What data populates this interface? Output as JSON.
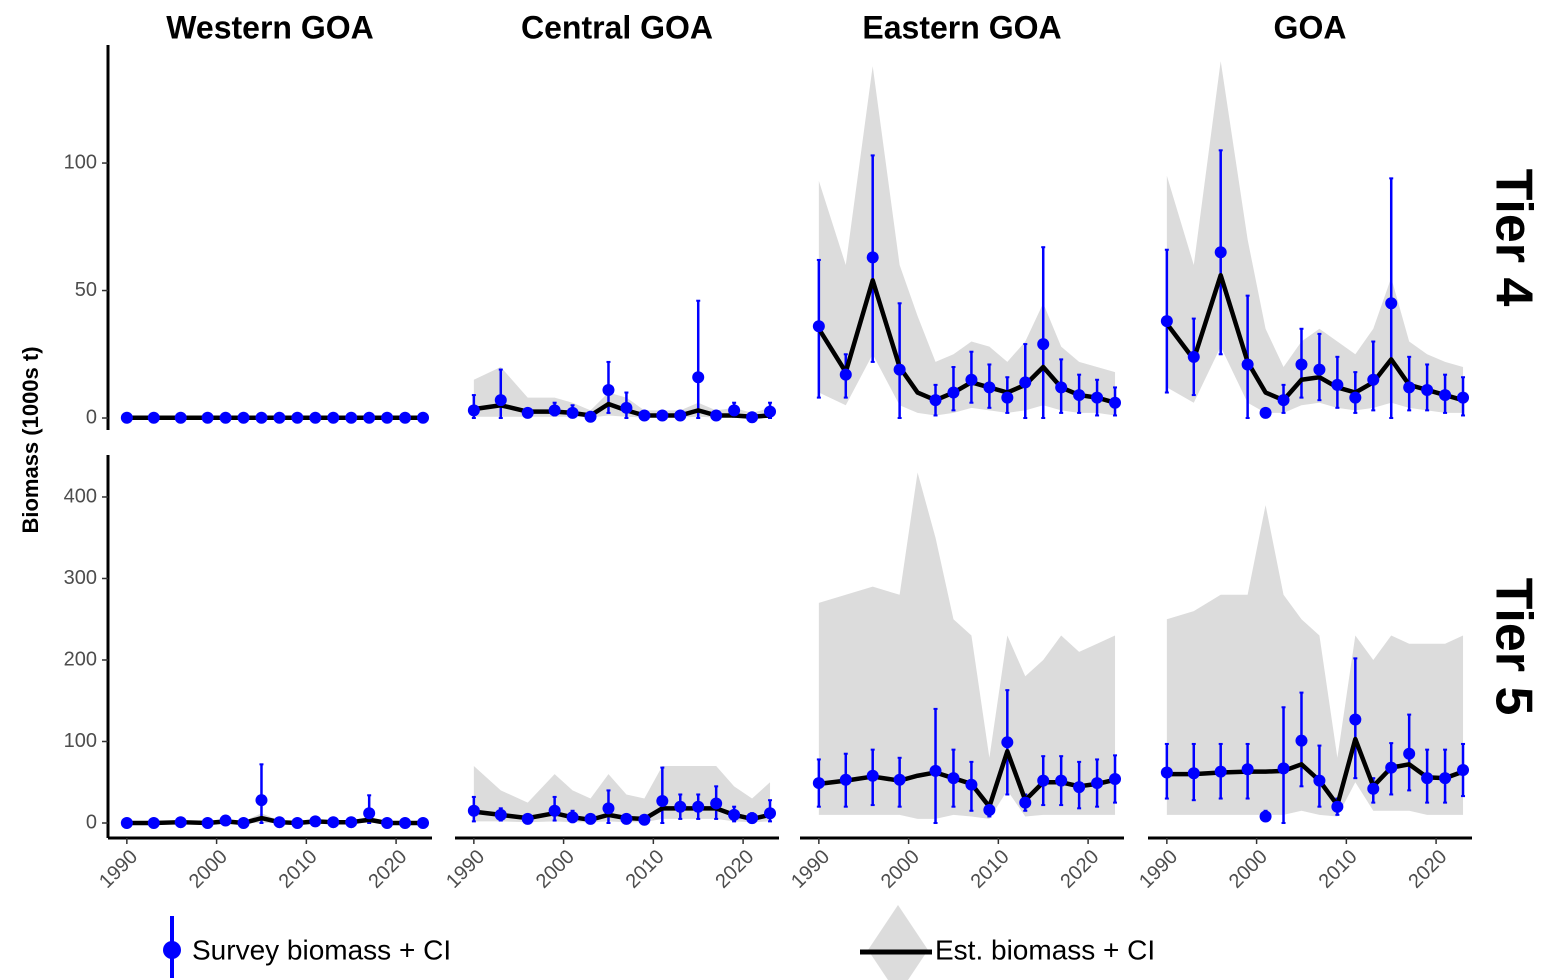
{
  "chart_data": {
    "type": "facet",
    "y_label": "Biomass (1000s t)",
    "columns": [
      "Western GOA",
      "Central GOA",
      "Eastern GOA",
      "GOA"
    ],
    "x": [
      1990,
      1993,
      1996,
      1999,
      2001,
      2003,
      2005,
      2007,
      2009,
      2011,
      2013,
      2015,
      2017,
      2019,
      2021,
      2023
    ],
    "xlim": [
      1987.9,
      2024
    ],
    "xticks": [
      1990,
      2000,
      2010,
      2020
    ],
    "series": [
      {
        "name": "Survey biomass + CI",
        "color": "#0000ff"
      },
      {
        "name": "Est. biomass + CI",
        "color": "#000000",
        "band_color": "#dcdcdc"
      }
    ],
    "rows": [
      {
        "label": "Tier 4",
        "ylim": [
          -4.7,
          146.3
        ],
        "yticks": [
          0,
          50,
          100
        ],
        "panels": [
          {
            "type": "line",
            "survey": {
              "values": [
                0.1,
                0.1,
                0.1,
                0.1,
                0.1,
                0.1,
                0.1,
                0.1,
                0.1,
                0.1,
                0.1,
                0.1,
                0.1,
                0.1,
                0.1,
                0.1
              ],
              "lower": [
                0,
                0,
                0,
                0,
                0,
                0,
                0,
                0,
                0,
                0,
                0,
                0,
                0,
                0,
                0,
                0
              ],
              "upper": [
                0.3,
                0.3,
                0.3,
                0.3,
                0.3,
                0.3,
                0.3,
                0.3,
                0.3,
                0.3,
                0.3,
                0.3,
                0.3,
                0.3,
                0.3,
                0.3
              ]
            },
            "estimate": {
              "values": [
                0.1,
                0.1,
                0.1,
                0.1,
                0.1,
                0.1,
                0.1,
                0.1,
                0.1,
                0.1,
                0.1,
                0.1,
                0.1,
                0.1,
                0.1,
                0.1
              ],
              "lower": [
                0,
                0,
                0,
                0,
                0,
                0,
                0,
                0,
                0,
                0,
                0,
                0,
                0,
                0,
                0,
                0
              ],
              "upper": [
                0.4,
                0.4,
                0.4,
                0.4,
                0.4,
                0.4,
                0.4,
                0.4,
                0.4,
                0.4,
                0.4,
                0.4,
                0.4,
                0.4,
                0.4,
                0.4
              ]
            }
          },
          {
            "type": "line",
            "survey": {
              "values": [
                3,
                7,
                2,
                3,
                2,
                0.5,
                11,
                4,
                1,
                1,
                1,
                16,
                1,
                3,
                0.3,
                2.5
              ],
              "lower": [
                0,
                0,
                1,
                1,
                0.5,
                0,
                2,
                0,
                0,
                0,
                0,
                0,
                0,
                0.5,
                0,
                0
              ],
              "upper": [
                9,
                19,
                3,
                6,
                5,
                1,
                22,
                10,
                2,
                2,
                2,
                46,
                2,
                6,
                1,
                6
              ]
            },
            "estimate": {
              "values": [
                3.5,
                5,
                2.5,
                2.5,
                2,
                1,
                5.5,
                3,
                1,
                1,
                1,
                3,
                1,
                1,
                0.5,
                1
              ],
              "lower": [
                0.5,
                0.5,
                0.5,
                0.5,
                0.5,
                0.2,
                1,
                0.5,
                0.2,
                0.2,
                0.2,
                0.5,
                0.2,
                0.2,
                0.1,
                0.2
              ],
              "upper": [
                15,
                20,
                8,
                8,
                6,
                3,
                10,
                8,
                3,
                3,
                3,
                6,
                3,
                4,
                2,
                4
              ]
            }
          },
          {
            "type": "line",
            "survey": {
              "values": [
                36,
                17,
                63,
                19,
                null,
                7,
                10,
                15,
                12,
                8,
                14,
                29,
                12,
                9,
                8,
                6
              ],
              "lower": [
                8,
                8,
                22,
                0,
                null,
                1,
                3,
                6,
                4,
                2,
                0,
                0,
                2,
                2,
                1,
                1
              ],
              "upper": [
                62,
                25,
                103,
                45,
                null,
                13,
                20,
                26,
                21,
                16,
                29,
                67,
                23,
                17,
                15,
                12
              ]
            },
            "estimate": {
              "values": [
                35,
                18,
                54,
                20,
                10,
                7,
                10,
                14,
                12,
                10,
                13,
                20,
                12,
                9,
                8,
                6
              ],
              "lower": [
                10,
                5,
                25,
                5,
                2,
                1,
                2,
                4,
                3,
                2,
                3,
                5,
                3,
                2,
                2,
                1
              ],
              "upper": [
                93,
                60,
                138,
                60,
                40,
                22,
                25,
                30,
                28,
                22,
                30,
                45,
                28,
                22,
                20,
                18
              ]
            }
          },
          {
            "type": "line",
            "survey": {
              "values": [
                38,
                24,
                65,
                21,
                2,
                7,
                21,
                19,
                13,
                8,
                15,
                45,
                12,
                11,
                9,
                8
              ],
              "lower": [
                10,
                9,
                25,
                0,
                null,
                2,
                8,
                7,
                4,
                2,
                3,
                0,
                3,
                3,
                2,
                1
              ],
              "upper": [
                66,
                39,
                105,
                48,
                null,
                13,
                35,
                33,
                24,
                18,
                30,
                94,
                24,
                21,
                17,
                16
              ]
            },
            "estimate": {
              "values": [
                37,
                23,
                56,
                22,
                10,
                7,
                15,
                16,
                12,
                10,
                14,
                23,
                13,
                11,
                9,
                7
              ],
              "lower": [
                12,
                6,
                28,
                6,
                2,
                2,
                5,
                6,
                4,
                3,
                4,
                6,
                4,
                3,
                2,
                2
              ],
              "upper": [
                95,
                60,
                140,
                70,
                35,
                20,
                30,
                35,
                30,
                25,
                35,
                55,
                30,
                25,
                22,
                20
              ]
            }
          }
        ]
      },
      {
        "label": "Tier 5",
        "ylim": [
          -18.4,
          451.5
        ],
        "yticks": [
          0,
          100,
          200,
          300,
          400
        ],
        "panels": [
          {
            "type": "line",
            "survey": {
              "values": [
                0,
                0,
                1,
                0,
                3,
                0,
                28,
                1,
                0,
                2,
                1,
                1,
                12,
                0,
                0,
                0
              ],
              "lower": [
                0,
                0,
                0,
                0,
                0,
                0,
                0,
                0,
                0,
                0,
                0,
                0,
                0,
                0,
                0,
                0
              ],
              "upper": [
                1,
                1,
                2,
                1,
                6,
                1,
                72,
                3,
                1,
                5,
                3,
                3,
                34,
                1,
                1,
                1
              ]
            },
            "estimate": {
              "values": [
                0,
                0,
                1,
                0,
                2,
                0,
                6,
                1,
                0,
                2,
                1,
                1,
                4,
                0,
                0,
                0
              ],
              "lower": [
                0,
                0,
                0,
                0,
                0,
                0,
                0,
                0,
                0,
                0,
                0,
                0,
                0,
                0,
                0,
                0
              ],
              "upper": [
                2,
                2,
                3,
                2,
                4,
                2,
                12,
                3,
                2,
                4,
                3,
                3,
                8,
                2,
                2,
                2
              ]
            }
          },
          {
            "type": "line",
            "survey": {
              "values": [
                15,
                10,
                5,
                15,
                7,
                5,
                18,
                5,
                4,
                27,
                20,
                20,
                24,
                10,
                6,
                12
              ],
              "lower": [
                2,
                3,
                2,
                3,
                1,
                1,
                0,
                1,
                1,
                0,
                5,
                5,
                5,
                2,
                1,
                2
              ],
              "upper": [
                32,
                18,
                8,
                32,
                15,
                10,
                40,
                10,
                8,
                68,
                35,
                35,
                45,
                20,
                12,
                28
              ]
            },
            "estimate": {
              "values": [
                14,
                10,
                6,
                12,
                7,
                4,
                10,
                6,
                5,
                18,
                18,
                18,
                18,
                10,
                5,
                10
              ],
              "lower": [
                2,
                2,
                1,
                2,
                1,
                1,
                2,
                1,
                1,
                5,
                5,
                5,
                5,
                2,
                1,
                2
              ],
              "upper": [
                70,
                40,
                25,
                60,
                40,
                30,
                60,
                35,
                30,
                70,
                70,
                70,
                70,
                45,
                30,
                50
              ]
            }
          },
          {
            "type": "line",
            "survey": {
              "values": [
                49,
                53,
                58,
                53,
                null,
                64,
                55,
                47,
                16,
                99,
                25,
                52,
                52,
                44,
                49,
                54
              ],
              "lower": [
                20,
                20,
                22,
                20,
                null,
                0,
                20,
                15,
                8,
                35,
                15,
                22,
                22,
                18,
                20,
                25
              ],
              "upper": [
                78,
                85,
                90,
                80,
                null,
                140,
                90,
                75,
                25,
                163,
                35,
                82,
                82,
                75,
                78,
                83
              ]
            },
            "estimate": {
              "values": [
                48,
                52,
                57,
                52,
                58,
                62,
                55,
                48,
                20,
                88,
                28,
                50,
                50,
                45,
                48,
                53
              ],
              "lower": [
                10,
                10,
                10,
                10,
                5,
                5,
                10,
                8,
                5,
                40,
                8,
                10,
                10,
                10,
                10,
                10
              ],
              "upper": [
                270,
                280,
                290,
                280,
                430,
                350,
                250,
                230,
                80,
                230,
                180,
                200,
                230,
                210,
                220,
                230
              ]
            }
          },
          {
            "type": "line",
            "survey": {
              "values": [
                62,
                61,
                63,
                66,
                8,
                67,
                101,
                52,
                20,
                127,
                42,
                68,
                85,
                55,
                55,
                65
              ],
              "lower": [
                30,
                28,
                30,
                30,
                3,
                0,
                45,
                20,
                10,
                55,
                25,
                35,
                40,
                25,
                25,
                33
              ],
              "upper": [
                97,
                97,
                97,
                97,
                15,
                142,
                160,
                95,
                30,
                202,
                55,
                98,
                133,
                90,
                90,
                97
              ]
            },
            "estimate": {
              "values": [
                60,
                60,
                62,
                63,
                63,
                64,
                72,
                52,
                22,
                103,
                45,
                68,
                72,
                56,
                55,
                63
              ],
              "lower": [
                10,
                10,
                10,
                10,
                10,
                10,
                15,
                10,
                8,
                50,
                15,
                15,
                15,
                10,
                10,
                10
              ],
              "upper": [
                250,
                260,
                280,
                280,
                390,
                280,
                250,
                230,
                80,
                230,
                200,
                230,
                220,
                220,
                220,
                230
              ]
            }
          }
        ]
      }
    ]
  }
}
